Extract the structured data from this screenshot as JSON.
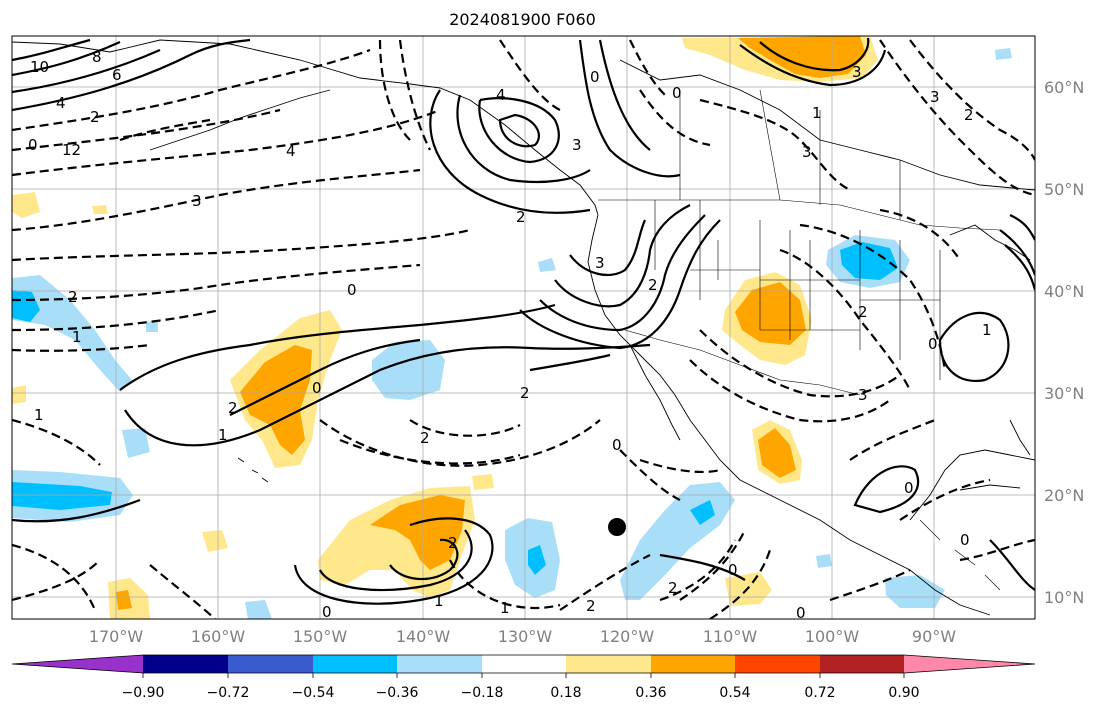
{
  "title": "2024081900 F060",
  "lat_labels": [
    "60°N",
    "50°N",
    "40°N",
    "30°N",
    "20°N",
    "10°N"
  ],
  "lon_labels": [
    "170°W",
    "160°W",
    "150°W",
    "140°W",
    "130°W",
    "120°W",
    "110°W",
    "100°W",
    "90°W"
  ],
  "colorbar": {
    "ticks": [
      "−0.90",
      "−0.72",
      "−0.54",
      "−0.36",
      "−0.18",
      "0.18",
      "0.36",
      "0.54",
      "0.72",
      "0.90"
    ],
    "colors": [
      "#9932CC",
      "#00008B",
      "#3A5BCD",
      "#00BFFF",
      "#A9DEF9",
      "#FFFFFF",
      "#FFE88C",
      "#FFA500",
      "#FF4500",
      "#B22222",
      "#FF88AA"
    ]
  },
  "contour_labels": [
    "10",
    "8",
    "6",
    "4",
    "2",
    "0",
    "12",
    "4",
    "3",
    "4",
    "0",
    "3",
    "2",
    "2",
    "3",
    "0",
    "2",
    "1",
    "1",
    "2",
    "0",
    "2",
    "1",
    "2",
    "0",
    "2",
    "0",
    "2",
    "1",
    "0",
    "1",
    "0",
    "2",
    "3",
    "0",
    "3",
    "1",
    "3",
    "2",
    "0",
    "0",
    "0",
    "2",
    "3",
    "1"
  ],
  "marker": {
    "label": "point-marker",
    "color": "#000000"
  }
}
